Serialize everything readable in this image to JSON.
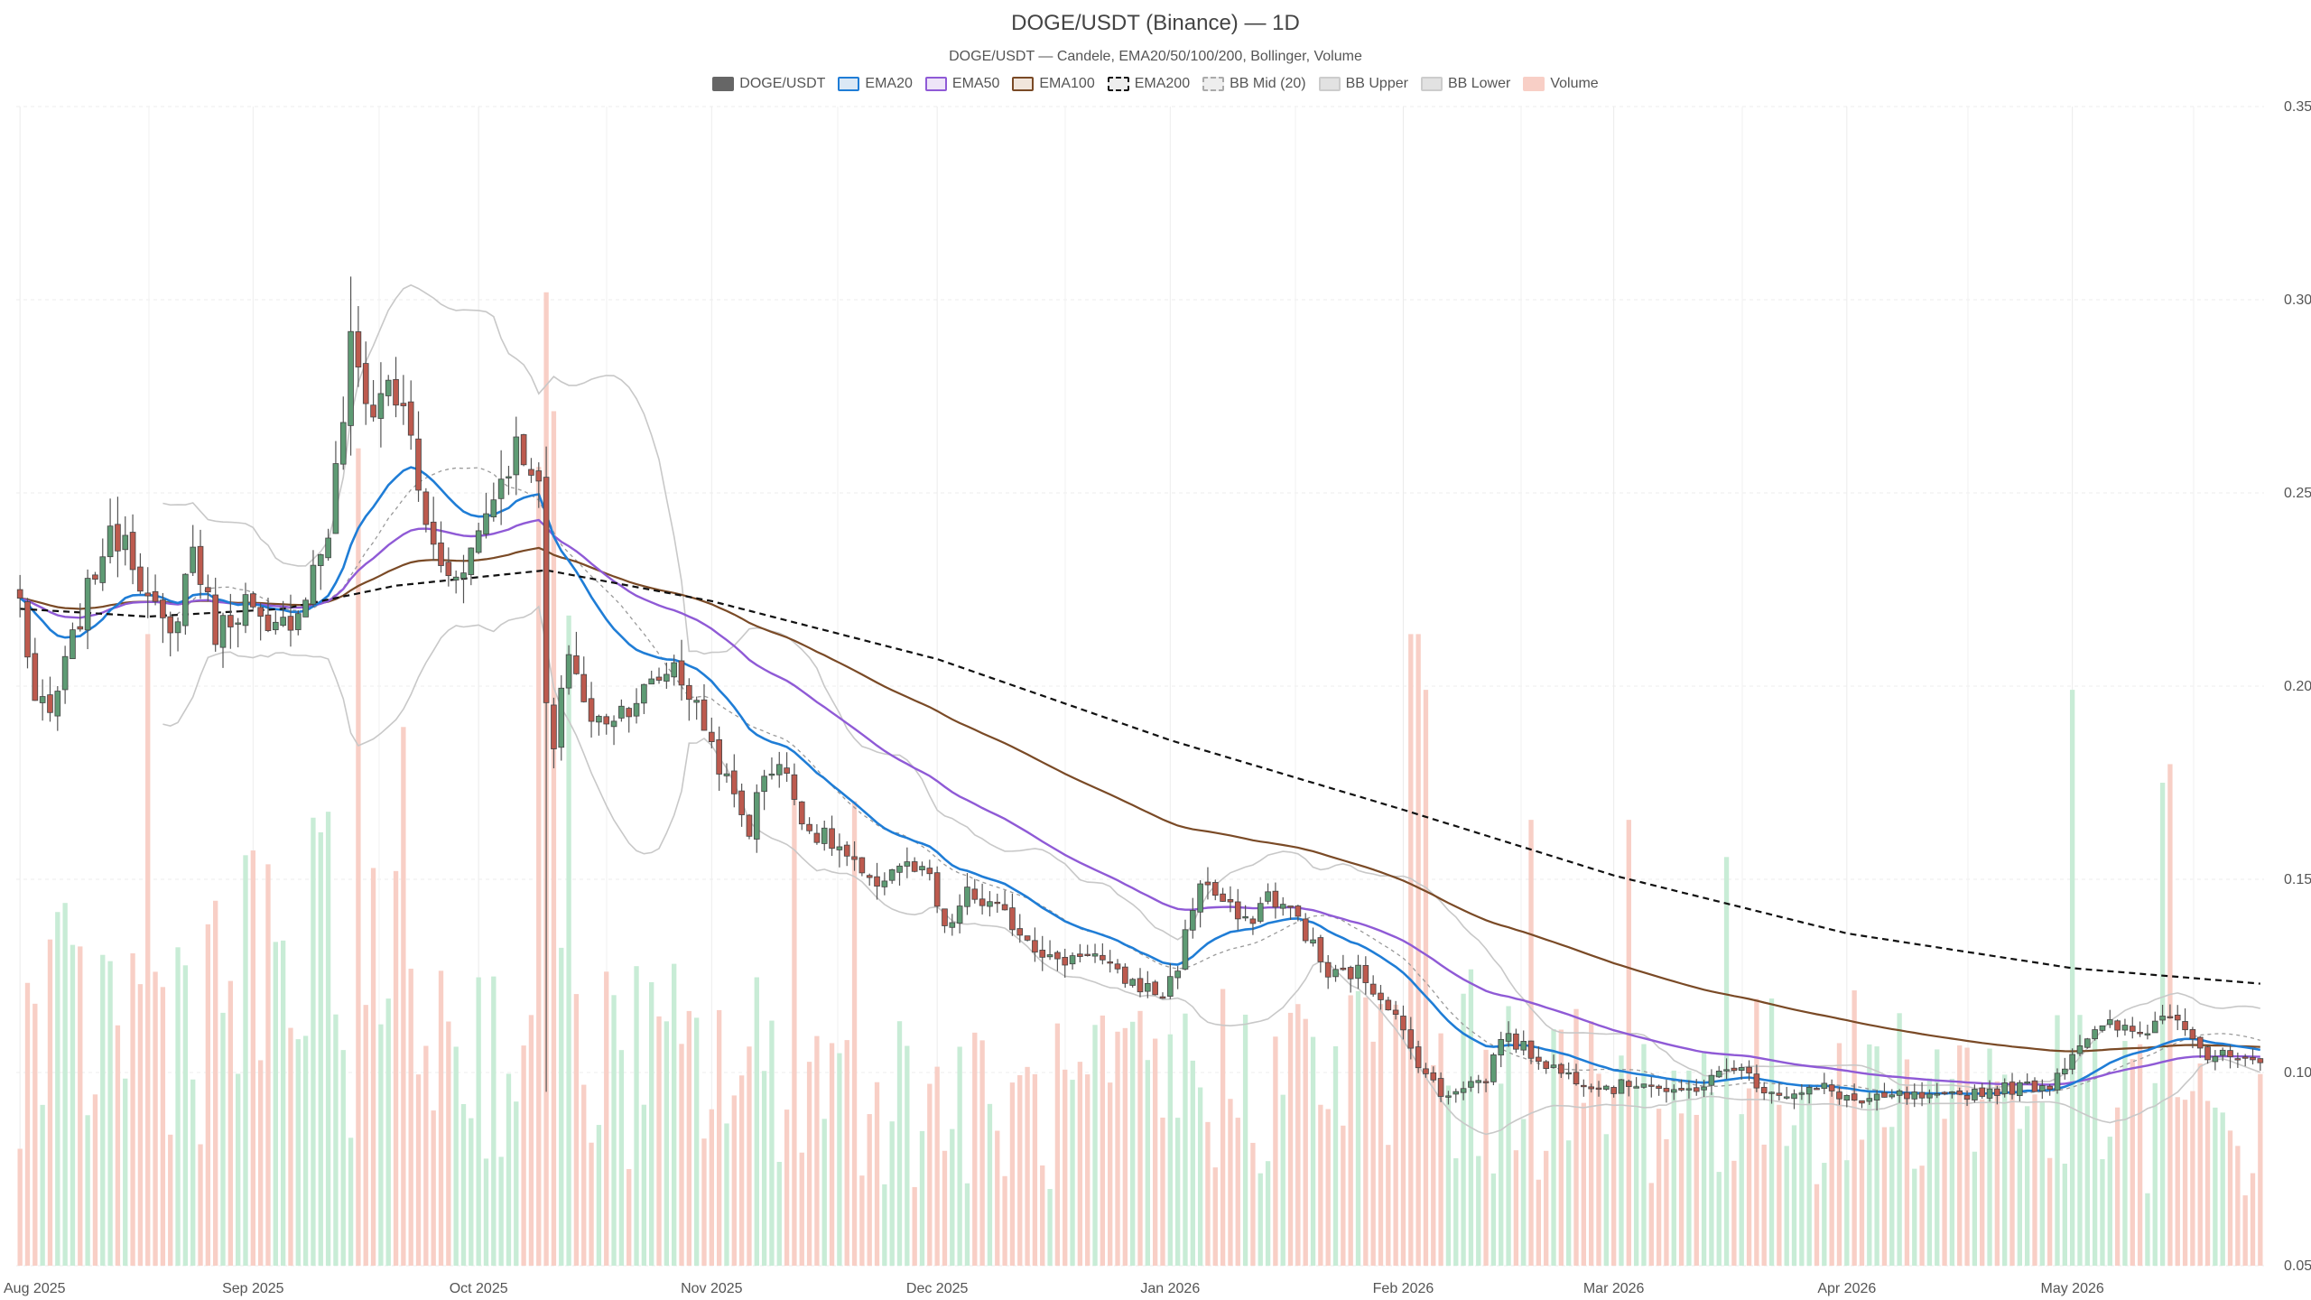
{
  "chart_data": {
    "type": "candlestick",
    "title": "DOGE/USDT (Binance) — 1D",
    "subtitle": "DOGE/USDT — Candele, EMA20/50/100/200, Bollinger, Volume",
    "legend": [
      {
        "label": "DOGE/USDT",
        "fill": "#666666",
        "stroke": "#666666",
        "dash": false
      },
      {
        "label": "EMA20",
        "fill": "#dbe8f5",
        "stroke": "#1f7dd6",
        "dash": false
      },
      {
        "label": "EMA50",
        "fill": "#eee5f8",
        "stroke": "#8f5ad6",
        "dash": false
      },
      {
        "label": "EMA100",
        "fill": "#f1e6dc",
        "stroke": "#7a4a26",
        "dash": false
      },
      {
        "label": "EMA200",
        "fill": "#eeeeee",
        "stroke": "#111111",
        "dash": true
      },
      {
        "label": "BB Mid (20)",
        "fill": "#eeeeee",
        "stroke": "#aaaaaa",
        "dash": true
      },
      {
        "label": "BB Upper",
        "fill": "#e2e2e2",
        "stroke": "#cccccc",
        "dash": false
      },
      {
        "label": "BB Lower",
        "fill": "#e2e2e2",
        "stroke": "#cccccc",
        "dash": false
      },
      {
        "label": "Volume",
        "fill": "#f8cfc6",
        "stroke": "#f8cfc6",
        "dash": false
      }
    ],
    "x_start": "2025-08-01",
    "x_end": "2026-05-26",
    "x_ticks": [
      "Aug 2025",
      "Sep 2025",
      "Oct 2025",
      "Nov 2025",
      "Dec 2025",
      "Jan 2026",
      "Feb 2026",
      "Mar 2026",
      "Apr 2026",
      "May 2026"
    ],
    "y_ticks": [
      "0.05",
      "0.10",
      "0.15",
      "0.20",
      "0.25",
      "0.30",
      "0.35"
    ],
    "ylim": [
      0.05,
      0.35
    ],
    "grid": true,
    "colors": {
      "up": "#5e9b74",
      "down": "#bd5a4e",
      "vol_up": "#c8ecd6",
      "vol_down": "#f8cfc6"
    },
    "price_anchors": [
      [
        "2025-08-01",
        0.222
      ],
      [
        "2025-08-03",
        0.196
      ],
      [
        "2025-08-05",
        0.192
      ],
      [
        "2025-08-09",
        0.218
      ],
      [
        "2025-08-12",
        0.236
      ],
      [
        "2025-08-15",
        0.24
      ],
      [
        "2025-08-18",
        0.222
      ],
      [
        "2025-08-21",
        0.212
      ],
      [
        "2025-08-24",
        0.236
      ],
      [
        "2025-08-27",
        0.214
      ],
      [
        "2025-08-31",
        0.222
      ],
      [
        "2025-09-03",
        0.212
      ],
      [
        "2025-09-07",
        0.22
      ],
      [
        "2025-09-11",
        0.24
      ],
      [
        "2025-09-13",
        0.27
      ],
      [
        "2025-09-14",
        0.288
      ],
      [
        "2025-09-17",
        0.27
      ],
      [
        "2025-09-19",
        0.28
      ],
      [
        "2025-09-22",
        0.264
      ],
      [
        "2025-09-24",
        0.24
      ],
      [
        "2025-09-27",
        0.228
      ],
      [
        "2025-09-30",
        0.235
      ],
      [
        "2025-10-03",
        0.25
      ],
      [
        "2025-10-06",
        0.262
      ],
      [
        "2025-10-08",
        0.258
      ],
      [
        "2025-10-09",
        0.25
      ],
      [
        "2025-10-10",
        0.195
      ],
      [
        "2025-10-11",
        0.183
      ],
      [
        "2025-10-13",
        0.21
      ],
      [
        "2025-10-16",
        0.19
      ],
      [
        "2025-10-20",
        0.194
      ],
      [
        "2025-10-24",
        0.2
      ],
      [
        "2025-10-27",
        0.206
      ],
      [
        "2025-10-31",
        0.19
      ],
      [
        "2025-11-03",
        0.175
      ],
      [
        "2025-11-06",
        0.163
      ],
      [
        "2025-11-08",
        0.178
      ],
      [
        "2025-11-10",
        0.18
      ],
      [
        "2025-11-14",
        0.163
      ],
      [
        "2025-11-18",
        0.158
      ],
      [
        "2025-11-22",
        0.148
      ],
      [
        "2025-11-26",
        0.154
      ],
      [
        "2025-11-30",
        0.15
      ],
      [
        "2025-12-02",
        0.136
      ],
      [
        "2025-12-05",
        0.146
      ],
      [
        "2025-12-09",
        0.142
      ],
      [
        "2025-12-13",
        0.135
      ],
      [
        "2025-12-17",
        0.128
      ],
      [
        "2025-12-21",
        0.132
      ],
      [
        "2025-12-25",
        0.125
      ],
      [
        "2025-12-31",
        0.12
      ],
      [
        "2026-01-02",
        0.128
      ],
      [
        "2026-01-05",
        0.15
      ],
      [
        "2026-01-08",
        0.144
      ],
      [
        "2026-01-11",
        0.138
      ],
      [
        "2026-01-14",
        0.146
      ],
      [
        "2026-01-18",
        0.14
      ],
      [
        "2026-01-22",
        0.125
      ],
      [
        "2026-01-26",
        0.126
      ],
      [
        "2026-01-30",
        0.118
      ],
      [
        "2026-02-02",
        0.106
      ],
      [
        "2026-02-04",
        0.1
      ],
      [
        "2026-02-06",
        0.094
      ],
      [
        "2026-02-09",
        0.097
      ],
      [
        "2026-02-12",
        0.098
      ],
      [
        "2026-02-14",
        0.11
      ],
      [
        "2026-02-18",
        0.105
      ],
      [
        "2026-02-22",
        0.1
      ],
      [
        "2026-02-25",
        0.098
      ],
      [
        "2026-03-01",
        0.096
      ],
      [
        "2026-03-05",
        0.098
      ],
      [
        "2026-03-09",
        0.094
      ],
      [
        "2026-03-13",
        0.097
      ],
      [
        "2026-03-17",
        0.102
      ],
      [
        "2026-03-21",
        0.096
      ],
      [
        "2026-03-25",
        0.094
      ],
      [
        "2026-03-29",
        0.096
      ],
      [
        "2026-04-03",
        0.092
      ],
      [
        "2026-04-08",
        0.094
      ],
      [
        "2026-04-13",
        0.093
      ],
      [
        "2026-04-18",
        0.095
      ],
      [
        "2026-04-23",
        0.096
      ],
      [
        "2026-04-28",
        0.097
      ],
      [
        "2026-05-02",
        0.108
      ],
      [
        "2026-05-06",
        0.112
      ],
      [
        "2026-05-10",
        0.11
      ],
      [
        "2026-05-14",
        0.116
      ],
      [
        "2026-05-16",
        0.113
      ],
      [
        "2026-05-19",
        0.104
      ],
      [
        "2026-05-22",
        0.104
      ],
      [
        "2026-05-26",
        0.101
      ]
    ],
    "ema200_anchors": [
      [
        "2025-08-01",
        0.22
      ],
      [
        "2025-08-18",
        0.218
      ],
      [
        "2025-09-05",
        0.22
      ],
      [
        "2025-09-20",
        0.226
      ],
      [
        "2025-10-10",
        0.23
      ],
      [
        "2025-11-01",
        0.222
      ],
      [
        "2025-12-01",
        0.207
      ],
      [
        "2026-01-01",
        0.186
      ],
      [
        "2026-02-01",
        0.168
      ],
      [
        "2026-03-01",
        0.151
      ],
      [
        "2026-04-01",
        0.136
      ],
      [
        "2026-05-01",
        0.127
      ],
      [
        "2026-05-26",
        0.123
      ]
    ],
    "volume_scale_max": 2.6,
    "volume_spikes": [
      [
        "2025-08-18",
        1.7
      ],
      [
        "2025-09-15",
        2.2
      ],
      [
        "2025-09-21",
        1.45
      ],
      [
        "2025-10-09",
        2.15
      ],
      [
        "2025-10-10",
        2.62
      ],
      [
        "2025-10-11",
        2.3
      ],
      [
        "2025-10-13",
        1.75
      ],
      [
        "2025-11-12",
        1.3
      ],
      [
        "2025-11-20",
        1.25
      ],
      [
        "2026-02-02",
        1.7
      ],
      [
        "2026-02-03",
        1.7
      ],
      [
        "2026-02-04",
        1.55
      ],
      [
        "2026-02-18",
        1.2
      ],
      [
        "2026-03-03",
        1.2
      ],
      [
        "2026-03-16",
        1.1
      ],
      [
        "2026-05-01",
        1.55
      ],
      [
        "2026-05-13",
        1.3
      ],
      [
        "2026-05-14",
        1.35
      ]
    ],
    "volume_base_steps": [
      [
        "2025-08-01",
        0.6
      ],
      [
        "2025-09-10",
        0.8
      ],
      [
        "2025-10-01",
        0.6
      ],
      [
        "2025-10-20",
        0.55
      ],
      [
        "2025-11-20",
        0.5
      ],
      [
        "2025-12-10",
        0.4
      ],
      [
        "2026-01-05",
        0.5
      ],
      [
        "2026-02-01",
        0.55
      ],
      [
        "2026-03-01",
        0.45
      ],
      [
        "2026-04-15",
        0.5
      ],
      [
        "2026-05-26",
        0.35
      ]
    ]
  }
}
